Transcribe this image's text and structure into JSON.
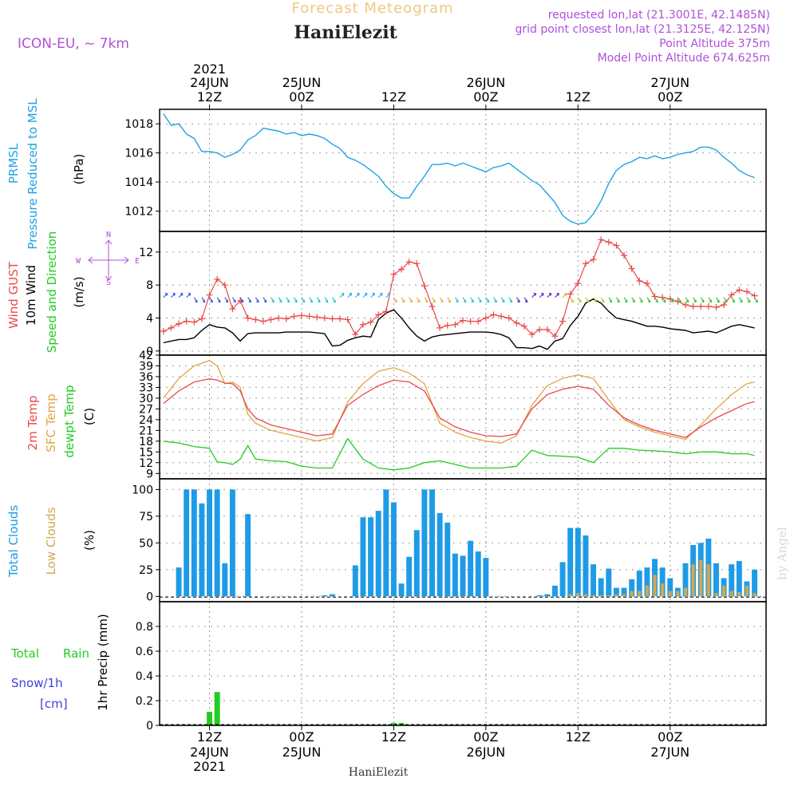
{
  "header": {
    "title": "Forecast Meteogram",
    "location": "HaniElezit",
    "model": "ICON-EU, ~ 7km",
    "requested": "requested lon,lat (21.3001E, 42.1485N)",
    "gridpoint": "grid point closest lon,lat (21.3125E, 42.125N)",
    "point_alt": "Point Altitude 375m",
    "model_alt": "Model Point Altitude 674.625m",
    "footer": "HaniElezit",
    "credit": "by Angel"
  },
  "time_axis": {
    "top_labels": [
      {
        "l1": "2021",
        "l2": "24JUN",
        "l3": "12Z",
        "h": 12
      },
      {
        "l1": "",
        "l2": "25JUN",
        "l3": "00Z",
        "h": 24
      },
      {
        "l1": "",
        "l2": "",
        "l3": "12Z",
        "h": 36
      },
      {
        "l1": "",
        "l2": "26JUN",
        "l3": "00Z",
        "h": 48
      },
      {
        "l1": "",
        "l2": "",
        "l3": "12Z",
        "h": 60
      },
      {
        "l1": "",
        "l2": "27JUN",
        "l3": "00Z",
        "h": 72
      }
    ],
    "bottom_labels": [
      {
        "l1": "12Z",
        "l2": "24JUN",
        "l3": "2021",
        "h": 12
      },
      {
        "l1": "00Z",
        "l2": "25JUN",
        "l3": "",
        "h": 24
      },
      {
        "l1": "12Z",
        "l2": "",
        "l3": "",
        "h": 36
      },
      {
        "l1": "00Z",
        "l2": "26JUN",
        "l3": "",
        "h": 48
      },
      {
        "l1": "12Z",
        "l2": "",
        "l3": "",
        "h": 60
      },
      {
        "l1": "00Z",
        "l2": "27JUN",
        "l3": "",
        "h": 72
      }
    ]
  },
  "chart_data": [
    {
      "type": "line",
      "panel": "pressure",
      "labels": [
        "PRMSL",
        "Pressure Reduced to MSL",
        "(hPa)"
      ],
      "ylim": [
        1010.6,
        1019.0
      ],
      "yticks": [
        1012,
        1014,
        1016,
        1018
      ],
      "x": [
        6,
        7,
        8,
        9,
        10,
        11,
        12,
        13,
        14,
        15,
        16,
        17,
        18,
        19,
        20,
        21,
        22,
        23,
        24,
        25,
        26,
        27,
        28,
        29,
        30,
        31,
        32,
        33,
        34,
        35,
        36,
        37,
        38,
        39,
        40,
        41,
        42,
        43,
        44,
        45,
        46,
        47,
        48,
        49,
        50,
        51,
        52,
        53,
        54,
        55,
        56,
        57,
        58,
        59,
        60,
        61,
        62,
        63,
        64,
        65,
        66,
        67,
        68,
        69,
        70,
        71,
        72,
        73,
        74,
        75,
        76,
        77,
        78,
        79,
        80,
        81,
        82,
        83
      ],
      "values": [
        1018.7,
        1017.9,
        1018.0,
        1017.3,
        1017.0,
        1016.1,
        1016.1,
        1016.0,
        1015.7,
        1015.9,
        1016.2,
        1016.9,
        1017.2,
        1017.7,
        1017.6,
        1017.5,
        1017.3,
        1017.4,
        1017.2,
        1017.3,
        1017.2,
        1017.0,
        1016.6,
        1016.3,
        1015.7,
        1015.5,
        1015.2,
        1014.8,
        1014.4,
        1013.7,
        1013.2,
        1012.9,
        1012.9,
        1013.7,
        1014.4,
        1015.2,
        1015.2,
        1015.3,
        1015.1,
        1015.3,
        1015.1,
        1014.9,
        1014.7,
        1015.0,
        1015.1,
        1015.3,
        1014.9,
        1014.5,
        1014.1,
        1013.8,
        1013.2,
        1012.6,
        1011.7,
        1011.3,
        1011.1,
        1011.2,
        1011.8,
        1012.7,
        1013.9,
        1014.8,
        1015.2,
        1015.4,
        1015.7,
        1015.6,
        1015.8,
        1015.6,
        1015.7,
        1015.9,
        1016.0,
        1016.1,
        1016.4,
        1016.4,
        1016.2,
        1015.7,
        1015.3,
        1014.8,
        1014.5,
        1014.3
      ]
    },
    {
      "type": "line",
      "panel": "wind",
      "labels": [
        "Wind GUST",
        "10m Wind",
        "Speed and Direction",
        "(m/s)"
      ],
      "compass": {
        "n": "N",
        "s": "S",
        "w": "W",
        "e": "E"
      },
      "ylim": [
        -0.5,
        14.5
      ],
      "yticks": [
        0,
        4,
        8,
        12
      ],
      "x": [
        6,
        7,
        8,
        9,
        10,
        11,
        12,
        13,
        14,
        15,
        16,
        17,
        18,
        19,
        20,
        21,
        22,
        23,
        24,
        25,
        26,
        27,
        28,
        29,
        30,
        31,
        32,
        33,
        34,
        35,
        36,
        37,
        38,
        39,
        40,
        41,
        42,
        43,
        44,
        45,
        46,
        47,
        48,
        49,
        50,
        51,
        52,
        53,
        54,
        55,
        56,
        57,
        58,
        59,
        60,
        61,
        62,
        63,
        64,
        65,
        66,
        67,
        68,
        69,
        70,
        71,
        72,
        73,
        74,
        75,
        76,
        77,
        78,
        79,
        80,
        81,
        82,
        83
      ],
      "series": [
        {
          "name": "Wind GUST",
          "values": [
            2.4,
            2.8,
            3.3,
            3.6,
            3.5,
            3.9,
            6.8,
            8.7,
            8.0,
            5.1,
            6.1,
            4.0,
            3.8,
            3.6,
            3.8,
            4.0,
            3.9,
            4.2,
            4.3,
            4.2,
            4.1,
            4.0,
            3.9,
            3.9,
            3.8,
            2.0,
            3.2,
            3.5,
            4.4,
            4.8,
            9.3,
            9.9,
            10.8,
            10.6,
            7.9,
            5.4,
            2.8,
            3.1,
            3.2,
            3.7,
            3.6,
            3.6,
            4.0,
            4.4,
            4.2,
            4.0,
            3.4,
            3.0,
            2.0,
            2.6,
            2.6,
            1.8,
            3.6,
            6.9,
            8.2,
            10.6,
            11.1,
            13.5,
            13.2,
            12.8,
            11.6,
            10.0,
            8.5,
            8.2,
            6.6,
            6.5,
            6.3,
            6.0,
            5.6,
            5.4,
            5.4,
            5.4,
            5.3,
            5.6,
            6.8,
            7.4,
            7.2,
            6.7
          ]
        },
        {
          "name": "10m Wind",
          "values": [
            1.0,
            1.2,
            1.4,
            1.4,
            1.6,
            2.5,
            3.2,
            2.9,
            2.8,
            2.2,
            1.2,
            2.1,
            2.2,
            2.2,
            2.2,
            2.2,
            2.3,
            2.3,
            2.3,
            2.3,
            2.2,
            2.1,
            0.6,
            0.7,
            1.3,
            1.6,
            1.8,
            1.7,
            3.8,
            4.6,
            5.0,
            4.0,
            2.8,
            1.8,
            1.2,
            1.7,
            1.9,
            2.0,
            2.1,
            2.2,
            2.3,
            2.3,
            2.3,
            2.2,
            2.0,
            1.6,
            0.4,
            0.4,
            0.3,
            0.6,
            0.2,
            1.2,
            1.5,
            3.1,
            4.2,
            5.8,
            6.3,
            5.8,
            4.8,
            4.0,
            3.8,
            3.6,
            3.3,
            3.0,
            3.0,
            2.9,
            2.7,
            2.6,
            2.5,
            2.2,
            2.3,
            2.4,
            2.2,
            2.6,
            3.0,
            3.2,
            3.0,
            2.8
          ]
        }
      ]
    },
    {
      "type": "line",
      "panel": "temperature",
      "labels": [
        "2m Temp",
        "SFC Temp",
        "dewpt Temp",
        "(C)"
      ],
      "ylim": [
        7.5,
        42.0
      ],
      "yticks": [
        9,
        12,
        15,
        18,
        21,
        24,
        27,
        30,
        33,
        36,
        39,
        42
      ],
      "x": [
        6,
        8,
        10,
        12,
        13,
        14,
        15,
        16,
        17,
        18,
        20,
        22,
        24,
        26,
        28,
        30,
        32,
        34,
        36,
        38,
        40,
        42,
        44,
        46,
        48,
        50,
        52,
        54,
        56,
        58,
        60,
        62,
        64,
        66,
        68,
        70,
        72,
        74,
        76,
        78,
        80,
        82,
        83
      ],
      "series": [
        {
          "name": "2m Temp",
          "values": [
            28.5,
            32.0,
            34.5,
            35.4,
            35.0,
            34.2,
            34.0,
            32.0,
            27.0,
            24.5,
            22.5,
            21.5,
            20.5,
            19.5,
            20.0,
            28.0,
            31.0,
            33.5,
            35.0,
            34.5,
            32.0,
            24.5,
            22.0,
            20.5,
            19.5,
            19.3,
            20.0,
            27.0,
            31.0,
            32.5,
            33.3,
            32.5,
            28.0,
            24.5,
            22.5,
            21.0,
            20.0,
            19.0,
            22.0,
            24.5,
            26.5,
            28.5,
            29.0
          ]
        },
        {
          "name": "SFC Temp",
          "values": [
            30.0,
            35.5,
            39.0,
            40.5,
            39.0,
            34.0,
            34.5,
            33.0,
            25.5,
            23.0,
            21.0,
            20.0,
            19.0,
            18.0,
            19.0,
            29.0,
            34.0,
            37.5,
            38.5,
            37.0,
            34.0,
            23.0,
            20.5,
            19.0,
            18.0,
            17.5,
            19.5,
            28.0,
            33.5,
            35.5,
            36.5,
            35.5,
            29.5,
            24.0,
            22.0,
            20.5,
            19.5,
            18.5,
            22.5,
            27.0,
            31.0,
            34.0,
            34.5
          ]
        },
        {
          "name": "dewpt Temp",
          "values": [
            18.0,
            17.5,
            16.5,
            16.0,
            12.2,
            12.0,
            11.5,
            13.0,
            16.8,
            13.0,
            12.5,
            12.3,
            11.0,
            10.5,
            10.5,
            18.7,
            13.0,
            10.5,
            10.0,
            10.5,
            12.0,
            12.5,
            11.5,
            10.5,
            10.5,
            10.5,
            11.0,
            15.5,
            14.0,
            13.8,
            13.5,
            12.0,
            16.0,
            16.0,
            15.5,
            15.3,
            15.0,
            14.5,
            15.0,
            15.0,
            14.5,
            14.5,
            14.0
          ]
        }
      ]
    },
    {
      "type": "bar",
      "panel": "clouds",
      "labels": [
        "Total Clouds",
        "Low Clouds",
        "(%)"
      ],
      "ylim": [
        -5,
        110
      ],
      "yticks": [
        0,
        25,
        50,
        75,
        100
      ],
      "x": [
        8,
        9,
        10,
        11,
        12,
        13,
        14,
        15,
        16,
        17,
        18,
        19,
        20,
        21,
        22,
        23,
        24,
        25,
        26,
        27,
        28,
        29,
        30,
        31,
        32,
        33,
        34,
        35,
        36,
        37,
        38,
        39,
        40,
        41,
        42,
        43,
        44,
        45,
        46,
        47,
        48,
        49,
        50,
        51,
        52,
        53,
        54,
        55,
        56,
        57,
        58,
        59,
        60,
        61,
        62,
        63,
        64,
        65,
        66,
        67,
        68,
        69,
        70,
        71,
        72,
        73,
        74,
        75,
        76,
        77,
        78,
        79,
        80,
        81,
        82,
        83
      ],
      "series": [
        {
          "name": "Total Clouds",
          "values": [
            27,
            100,
            100,
            87,
            100,
            100,
            31,
            100,
            0,
            77,
            0,
            0,
            0,
            0,
            0,
            0,
            0,
            0,
            0,
            1,
            2,
            0,
            0,
            29,
            74,
            74,
            80,
            100,
            88,
            12,
            37,
            62,
            100,
            100,
            78,
            69,
            40,
            38,
            52,
            42,
            36,
            0,
            0,
            0,
            0,
            0,
            0,
            1,
            2,
            10,
            32,
            64,
            64,
            57,
            30,
            17,
            26,
            8,
            8,
            16,
            24,
            27,
            35,
            27,
            17,
            8,
            31,
            48,
            50,
            54,
            31,
            17,
            30,
            33,
            14,
            25
          ]
        },
        {
          "name": "Low Clouds",
          "values": [
            0,
            0,
            0,
            0,
            0,
            0,
            0,
            0,
            0,
            0,
            0,
            0,
            0,
            0,
            0,
            0,
            0,
            0,
            0,
            0,
            0,
            0,
            0,
            0,
            0,
            0,
            0,
            0,
            0,
            0,
            0,
            0,
            0,
            0,
            0,
            0,
            0,
            0,
            0,
            0,
            0,
            0,
            0,
            0,
            0,
            0,
            0,
            0,
            0,
            0,
            0,
            2,
            3,
            2,
            1,
            1,
            1,
            2,
            2,
            5,
            5,
            10,
            20,
            12,
            5,
            5,
            8,
            30,
            34,
            30,
            3,
            10,
            5,
            4,
            10,
            3
          ]
        }
      ]
    },
    {
      "type": "bar",
      "panel": "precip",
      "labels": [
        "Total",
        "Rain",
        "Snow/1h",
        "[cm]",
        "1hr Precip (mm)"
      ],
      "ylim": [
        0,
        1.0
      ],
      "yticks": [
        0,
        0.2,
        0.4,
        0.6,
        0.8
      ],
      "ytick_labels": [
        "0",
        "0.2",
        "0.4",
        "0.6",
        "0.8"
      ],
      "x": [
        12,
        13,
        36,
        37
      ],
      "values": [
        0.11,
        0.27,
        0.02,
        0.02
      ]
    }
  ],
  "colors": {
    "pressure": "#1ea2e6",
    "gust": "#e84a4a",
    "wind": "#000000",
    "temp2m": "#e84a4a",
    "sfc": "#e1a544",
    "dewpt": "#22cc22",
    "total_clouds": "#1e9be6",
    "low_clouds": "#d0a850",
    "precip": "#22cc22",
    "title": "#f0c880",
    "info": "#b050d8",
    "snow": "#4040e0"
  }
}
